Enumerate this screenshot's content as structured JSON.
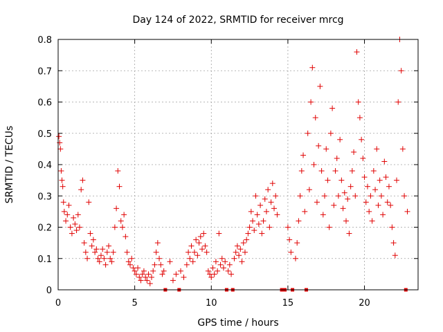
{
  "chart_data": {
    "type": "scatter",
    "title": "Day 124 of 2022, SRMTID for receiver mrcg",
    "xlabel": "GPS time / hours",
    "ylabel": "SRMTID / TECUs",
    "xlim": [
      0,
      23.5
    ],
    "ylim": [
      0,
      0.8
    ],
    "xticks": [
      0,
      5,
      10,
      15,
      20
    ],
    "xtick_labels": [
      "0",
      "5",
      "10",
      "15",
      "20"
    ],
    "yticks": [
      0,
      0.1,
      0.2,
      0.3,
      0.4,
      0.5,
      0.6,
      0.7,
      0.8
    ],
    "ytick_labels": [
      "0",
      "0.1",
      "0.2",
      "0.3",
      "0.4",
      "0.5",
      "0.6",
      "0.7",
      "0.8"
    ],
    "grid": true,
    "color": "#e00000",
    "series": [
      {
        "name": "SRMTID",
        "marker": "plus",
        "points": [
          [
            0.05,
            0.49
          ],
          [
            0.1,
            0.47
          ],
          [
            0.15,
            0.45
          ],
          [
            0.2,
            0.38
          ],
          [
            0.25,
            0.35
          ],
          [
            0.3,
            0.33
          ],
          [
            0.35,
            0.28
          ],
          [
            0.4,
            0.25
          ],
          [
            0.5,
            0.22
          ],
          [
            0.6,
            0.24
          ],
          [
            0.7,
            0.27
          ],
          [
            0.8,
            0.2
          ],
          [
            0.9,
            0.18
          ],
          [
            1.0,
            0.23
          ],
          [
            1.1,
            0.21
          ],
          [
            1.2,
            0.19
          ],
          [
            1.3,
            0.24
          ],
          [
            1.4,
            0.2
          ],
          [
            1.5,
            0.32
          ],
          [
            1.6,
            0.35
          ],
          [
            1.7,
            0.15
          ],
          [
            1.8,
            0.12
          ],
          [
            1.9,
            0.1
          ],
          [
            2.0,
            0.28
          ],
          [
            2.1,
            0.18
          ],
          [
            2.2,
            0.14
          ],
          [
            2.3,
            0.16
          ],
          [
            2.4,
            0.12
          ],
          [
            2.5,
            0.13
          ],
          [
            2.6,
            0.1
          ],
          [
            2.7,
            0.09
          ],
          [
            2.8,
            0.11
          ],
          [
            2.9,
            0.13
          ],
          [
            3.0,
            0.1
          ],
          [
            3.1,
            0.08
          ],
          [
            3.2,
            0.12
          ],
          [
            3.3,
            0.14
          ],
          [
            3.4,
            0.1
          ],
          [
            3.5,
            0.09
          ],
          [
            3.6,
            0.12
          ],
          [
            3.7,
            0.2
          ],
          [
            3.8,
            0.26
          ],
          [
            3.9,
            0.38
          ],
          [
            4.0,
            0.33
          ],
          [
            4.1,
            0.22
          ],
          [
            4.2,
            0.2
          ],
          [
            4.3,
            0.24
          ],
          [
            4.4,
            0.17
          ],
          [
            4.5,
            0.12
          ],
          [
            4.6,
            0.09
          ],
          [
            4.7,
            0.08
          ],
          [
            4.8,
            0.1
          ],
          [
            4.9,
            0.07
          ],
          [
            5.0,
            0.06
          ],
          [
            5.1,
            0.05
          ],
          [
            5.2,
            0.07
          ],
          [
            5.3,
            0.04
          ],
          [
            5.4,
            0.03
          ],
          [
            5.5,
            0.05
          ],
          [
            5.6,
            0.06
          ],
          [
            5.7,
            0.04
          ],
          [
            5.8,
            0.03
          ],
          [
            5.9,
            0.05
          ],
          [
            6.0,
            0.02
          ],
          [
            6.1,
            0.04
          ],
          [
            6.2,
            0.06
          ],
          [
            6.3,
            0.08
          ],
          [
            6.4,
            0.12
          ],
          [
            6.5,
            0.15
          ],
          [
            6.6,
            0.1
          ],
          [
            6.7,
            0.08
          ],
          [
            6.8,
            0.05
          ],
          [
            6.9,
            0.06
          ],
          [
            7.0,
            0.0
          ],
          [
            7.3,
            0.09
          ],
          [
            7.5,
            0.03
          ],
          [
            7.7,
            0.05
          ],
          [
            7.9,
            0.0
          ],
          [
            8.0,
            0.06
          ],
          [
            8.2,
            0.04
          ],
          [
            8.4,
            0.08
          ],
          [
            8.5,
            0.12
          ],
          [
            8.6,
            0.1
          ],
          [
            8.7,
            0.14
          ],
          [
            8.8,
            0.09
          ],
          [
            8.9,
            0.12
          ],
          [
            9.0,
            0.16
          ],
          [
            9.1,
            0.11
          ],
          [
            9.2,
            0.15
          ],
          [
            9.3,
            0.17
          ],
          [
            9.4,
            0.13
          ],
          [
            9.5,
            0.18
          ],
          [
            9.6,
            0.14
          ],
          [
            9.7,
            0.12
          ],
          [
            9.8,
            0.06
          ],
          [
            9.9,
            0.05
          ],
          [
            10.0,
            0.04
          ],
          [
            10.1,
            0.07
          ],
          [
            10.2,
            0.05
          ],
          [
            10.3,
            0.09
          ],
          [
            10.4,
            0.06
          ],
          [
            10.5,
            0.18
          ],
          [
            10.6,
            0.08
          ],
          [
            10.7,
            0.1
          ],
          [
            10.8,
            0.07
          ],
          [
            10.9,
            0.09
          ],
          [
            11.0,
            0.0
          ],
          [
            11.1,
            0.06
          ],
          [
            11.2,
            0.08
          ],
          [
            11.3,
            0.05
          ],
          [
            11.4,
            0.0
          ],
          [
            11.5,
            0.1
          ],
          [
            11.6,
            0.12
          ],
          [
            11.7,
            0.14
          ],
          [
            11.8,
            0.11
          ],
          [
            11.9,
            0.13
          ],
          [
            12.0,
            0.09
          ],
          [
            12.1,
            0.15
          ],
          [
            12.2,
            0.12
          ],
          [
            12.3,
            0.16
          ],
          [
            12.4,
            0.18
          ],
          [
            12.5,
            0.2
          ],
          [
            12.6,
            0.25
          ],
          [
            12.7,
            0.22
          ],
          [
            12.8,
            0.19
          ],
          [
            12.9,
            0.3
          ],
          [
            13.0,
            0.24
          ],
          [
            13.1,
            0.21
          ],
          [
            13.2,
            0.27
          ],
          [
            13.3,
            0.18
          ],
          [
            13.4,
            0.22
          ],
          [
            13.5,
            0.29
          ],
          [
            13.6,
            0.25
          ],
          [
            13.7,
            0.32
          ],
          [
            13.8,
            0.2
          ],
          [
            13.9,
            0.28
          ],
          [
            14.0,
            0.34
          ],
          [
            14.1,
            0.26
          ],
          [
            14.2,
            0.3
          ],
          [
            14.3,
            0.24
          ],
          [
            14.6,
            0.0
          ],
          [
            14.8,
            0.0
          ],
          [
            15.0,
            0.2
          ],
          [
            15.1,
            0.16
          ],
          [
            15.2,
            0.12
          ],
          [
            15.3,
            0.0
          ],
          [
            15.5,
            0.1
          ],
          [
            15.6,
            0.15
          ],
          [
            15.7,
            0.22
          ],
          [
            15.8,
            0.3
          ],
          [
            15.9,
            0.38
          ],
          [
            16.0,
            0.43
          ],
          [
            16.1,
            0.25
          ],
          [
            16.2,
            0.0
          ],
          [
            16.3,
            0.5
          ],
          [
            16.4,
            0.32
          ],
          [
            16.5,
            0.6
          ],
          [
            16.6,
            0.71
          ],
          [
            16.7,
            0.4
          ],
          [
            16.8,
            0.55
          ],
          [
            16.9,
            0.28
          ],
          [
            17.0,
            0.46
          ],
          [
            17.1,
            0.65
          ],
          [
            17.2,
            0.38
          ],
          [
            17.3,
            0.24
          ],
          [
            17.4,
            0.3
          ],
          [
            17.5,
            0.45
          ],
          [
            17.6,
            0.35
          ],
          [
            17.7,
            0.2
          ],
          [
            17.8,
            0.5
          ],
          [
            17.9,
            0.58
          ],
          [
            18.0,
            0.27
          ],
          [
            18.1,
            0.38
          ],
          [
            18.2,
            0.42
          ],
          [
            18.3,
            0.3
          ],
          [
            18.4,
            0.48
          ],
          [
            18.5,
            0.35
          ],
          [
            18.6,
            0.26
          ],
          [
            18.7,
            0.31
          ],
          [
            18.8,
            0.22
          ],
          [
            18.9,
            0.29
          ],
          [
            19.0,
            0.18
          ],
          [
            19.1,
            0.33
          ],
          [
            19.2,
            0.38
          ],
          [
            19.3,
            0.44
          ],
          [
            19.4,
            0.3
          ],
          [
            19.5,
            0.76
          ],
          [
            19.6,
            0.6
          ],
          [
            19.7,
            0.55
          ],
          [
            19.8,
            0.48
          ],
          [
            19.9,
            0.42
          ],
          [
            20.0,
            0.36
          ],
          [
            20.1,
            0.28
          ],
          [
            20.2,
            0.33
          ],
          [
            20.3,
            0.25
          ],
          [
            20.4,
            0.3
          ],
          [
            20.5,
            0.22
          ],
          [
            20.6,
            0.38
          ],
          [
            20.7,
            0.32
          ],
          [
            20.8,
            0.45
          ],
          [
            20.9,
            0.27
          ],
          [
            21.0,
            0.35
          ],
          [
            21.1,
            0.3
          ],
          [
            21.2,
            0.24
          ],
          [
            21.3,
            0.41
          ],
          [
            21.4,
            0.36
          ],
          [
            21.5,
            0.28
          ],
          [
            21.6,
            0.33
          ],
          [
            21.7,
            0.27
          ],
          [
            21.8,
            0.2
          ],
          [
            21.9,
            0.15
          ],
          [
            22.0,
            0.11
          ],
          [
            22.1,
            0.35
          ],
          [
            22.2,
            0.6
          ],
          [
            22.3,
            0.8
          ],
          [
            22.4,
            0.7
          ],
          [
            22.5,
            0.45
          ],
          [
            22.6,
            0.3
          ],
          [
            22.7,
            0.0
          ],
          [
            22.8,
            0.25
          ]
        ]
      }
    ]
  }
}
